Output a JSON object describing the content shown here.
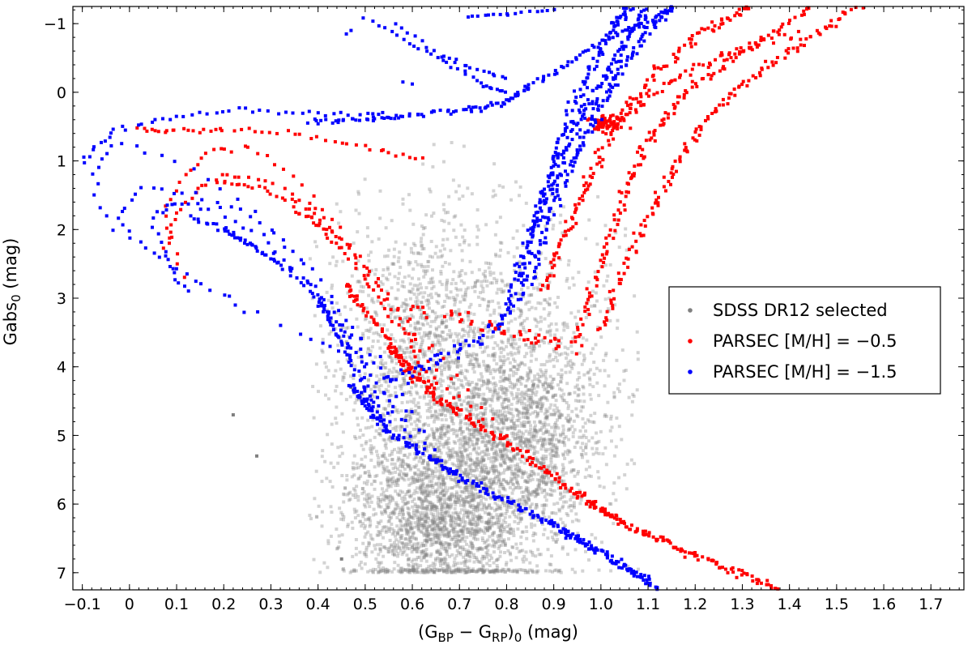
{
  "chart_data": {
    "type": "scatter",
    "title": "",
    "xlabel": {
      "prefix": "(G",
      "sub1": "BP",
      "mid": " − G",
      "sub2": "RP",
      "suffix": ")",
      "sub3": "0",
      "unit": " (mag)"
    },
    "ylabel": {
      "prefix": "Gabs",
      "sub": "0",
      "unit": " (mag)"
    },
    "xlim": [
      -0.12,
      1.77
    ],
    "ylim": [
      7.25,
      -1.25
    ],
    "y_inverted": true,
    "grid": false,
    "legend_position": "right",
    "x_ticks": [
      "−0.1",
      "0",
      "0.1",
      "0.2",
      "0.3",
      "0.4",
      "0.5",
      "0.6",
      "0.7",
      "0.8",
      "0.9",
      "1.0",
      "1.1",
      "1.2",
      "1.3",
      "1.4",
      "1.5",
      "1.6",
      "1.7"
    ],
    "x_tick_values": [
      -0.1,
      0,
      0.1,
      0.2,
      0.3,
      0.4,
      0.5,
      0.6,
      0.7,
      0.8,
      0.9,
      1.0,
      1.1,
      1.2,
      1.3,
      1.4,
      1.5,
      1.6,
      1.7
    ],
    "y_ticks": [
      "−1",
      "0",
      "1",
      "2",
      "3",
      "4",
      "5",
      "6",
      "7"
    ],
    "y_tick_values": [
      -1,
      0,
      1,
      2,
      3,
      4,
      5,
      6,
      7
    ],
    "series": [
      {
        "name": "SDSS DR12 selected",
        "color": "#808080",
        "density_cloud": [
          {
            "x": 0.66,
            "y": 6.3,
            "sx": 0.1,
            "sy": 0.55,
            "n": 1400
          },
          {
            "x": 0.7,
            "y": 5.4,
            "sx": 0.11,
            "sy": 0.7,
            "n": 1100
          },
          {
            "x": 0.85,
            "y": 4.9,
            "sx": 0.07,
            "sy": 0.75,
            "n": 900
          },
          {
            "x": 0.62,
            "y": 3.7,
            "sx": 0.1,
            "sy": 0.85,
            "n": 800
          },
          {
            "x": 0.78,
            "y": 3.2,
            "sx": 0.17,
            "sy": 1.1,
            "n": 500
          },
          {
            "x": 0.75,
            "y": 5.0,
            "sx": 0.19,
            "sy": 1.4,
            "n": 700
          }
        ],
        "outliers": [
          [
            0.22,
            4.7
          ],
          [
            0.27,
            5.3
          ],
          [
            0.47,
            4.3
          ],
          [
            0.45,
            6.8
          ]
        ]
      },
      {
        "name": "PARSEC [M/H] = −0.5",
        "color": "#ff0000",
        "main_sequence": [
          [
            0.55,
            3.7
          ],
          [
            0.65,
            4.45
          ],
          [
            0.8,
            5.1
          ],
          [
            0.95,
            5.85
          ],
          [
            1.05,
            6.3
          ],
          [
            1.2,
            6.75
          ],
          [
            1.38,
            7.25
          ]
        ],
        "turnoff_loops": [
          [
            [
              0.6,
              4.2
            ],
            [
              0.55,
              3.6
            ],
            [
              0.49,
              3.1
            ],
            [
              0.46,
              2.8
            ]
          ],
          [
            [
              0.65,
              4.4
            ],
            [
              0.6,
              3.7
            ],
            [
              0.52,
              2.9
            ],
            [
              0.45,
              2.3
            ],
            [
              0.4,
              1.9
            ],
            [
              0.35,
              1.7
            ]
          ],
          [
            [
              0.7,
              4.6
            ],
            [
              0.58,
              3.4
            ],
            [
              0.47,
              2.3
            ],
            [
              0.38,
              1.7
            ],
            [
              0.28,
              1.4
            ],
            [
              0.2,
              1.3
            ]
          ],
          [
            [
              0.75,
              4.8
            ],
            [
              0.62,
              3.6
            ],
            [
              0.5,
              2.5
            ],
            [
              0.4,
              1.7
            ],
            [
              0.3,
              1.3
            ],
            [
              0.2,
              1.2
            ],
            [
              0.15,
              1.4
            ],
            [
              0.1,
              1.8
            ],
            [
              0.08,
              2.3
            ]
          ],
          [
            [
              0.8,
              5.0
            ],
            [
              0.66,
              3.9
            ],
            [
              0.55,
              3.0
            ],
            [
              0.45,
              2.0
            ],
            [
              0.35,
              1.2
            ],
            [
              0.25,
              0.8
            ],
            [
              0.18,
              0.85
            ],
            [
              0.12,
              1.2
            ],
            [
              0.07,
              1.8
            ],
            [
              0.12,
              2.7
            ]
          ],
          [
            [
              0.62,
              1.0
            ],
            [
              0.5,
              0.8
            ],
            [
              0.35,
              0.6
            ],
            [
              0.2,
              0.55
            ],
            [
              0.1,
              0.55
            ],
            [
              0.02,
              0.55
            ]
          ]
        ],
        "subgiant_branch": [
          [
            0.6,
            3.1
          ],
          [
            0.75,
            3.4
          ],
          [
            0.85,
            3.6
          ],
          [
            0.95,
            3.7
          ]
        ],
        "rgb_bands": [
          [
            [
              0.95,
              3.6
            ],
            [
              1.0,
              2.5
            ],
            [
              1.05,
              1.5
            ],
            [
              1.1,
              0.7
            ],
            [
              1.18,
              0.0
            ],
            [
              1.3,
              -0.6
            ],
            [
              1.45,
              -1.25
            ]
          ],
          [
            [
              1.0,
              3.5
            ],
            [
              1.06,
              2.4
            ],
            [
              1.13,
              1.4
            ],
            [
              1.2,
              0.6
            ],
            [
              1.3,
              -0.1
            ],
            [
              1.42,
              -0.7
            ],
            [
              1.55,
              -1.25
            ]
          ],
          [
            [
              0.88,
              2.9
            ],
            [
              0.93,
              2.0
            ],
            [
              0.98,
              1.2
            ],
            [
              1.04,
              0.4
            ],
            [
              1.12,
              -0.3
            ],
            [
              1.22,
              -0.9
            ],
            [
              1.32,
              -1.25
            ]
          ]
        ],
        "red_clump": [
          1.01,
          0.45
        ],
        "clump_to_agb": [
          [
            1.03,
            0.45
          ],
          [
            1.1,
            0.1
          ],
          [
            1.2,
            -0.35
          ],
          [
            1.3,
            -0.6
          ],
          [
            1.4,
            -0.85
          ]
        ]
      },
      {
        "name": "PARSEC [M/H] = −1.5",
        "color": "#0000ff",
        "main_sequence": [
          [
            0.47,
            4.3
          ],
          [
            0.55,
            4.95
          ],
          [
            0.7,
            5.6
          ],
          [
            0.9,
            6.3
          ],
          [
            1.0,
            6.7
          ],
          [
            1.12,
            7.2
          ]
        ],
        "turnoff_loops": [
          [
            [
              0.52,
              4.6
            ],
            [
              0.47,
              3.9
            ],
            [
              0.43,
              3.4
            ],
            [
              0.4,
              3.0
            ]
          ],
          [
            [
              0.55,
              4.8
            ],
            [
              0.48,
              3.8
            ],
            [
              0.4,
              3.0
            ],
            [
              0.32,
              2.5
            ],
            [
              0.25,
              2.2
            ],
            [
              0.2,
              2.0
            ]
          ],
          [
            [
              0.58,
              4.9
            ],
            [
              0.48,
              3.7
            ],
            [
              0.38,
              2.8
            ],
            [
              0.28,
              2.3
            ],
            [
              0.2,
              2.0
            ],
            [
              0.13,
              1.8
            ]
          ],
          [
            [
              0.6,
              5.0
            ],
            [
              0.5,
              3.8
            ],
            [
              0.38,
              2.8
            ],
            [
              0.28,
              2.1
            ],
            [
              0.18,
              1.7
            ],
            [
              0.1,
              1.6
            ],
            [
              0.05,
              1.8
            ],
            [
              0.08,
              2.5
            ],
            [
              0.12,
              2.9
            ]
          ],
          [
            [
              0.63,
              5.1
            ],
            [
              0.52,
              3.9
            ],
            [
              0.4,
              2.7
            ],
            [
              0.28,
              1.9
            ],
            [
              0.15,
              1.5
            ],
            [
              0.02,
              1.4
            ],
            [
              -0.03,
              1.9
            ],
            [
              0.1,
              2.6
            ],
            [
              0.25,
              3.2
            ]
          ],
          [
            [
              0.65,
              5.2
            ],
            [
              0.54,
              4.0
            ],
            [
              0.4,
              2.8
            ],
            [
              0.25,
              1.6
            ],
            [
              0.1,
              1.0
            ],
            [
              -0.03,
              0.7
            ],
            [
              -0.08,
              1.2
            ],
            [
              -0.05,
              1.9
            ],
            [
              0.1,
              2.6
            ],
            [
              0.35,
              3.5
            ],
            [
              0.45,
              3.8
            ]
          ],
          [
            [
              0.55,
              0.35
            ],
            [
              0.4,
              0.3
            ],
            [
              0.25,
              0.25
            ],
            [
              0.1,
              0.35
            ],
            [
              -0.03,
              0.55
            ],
            [
              -0.1,
              1.0
            ]
          ]
        ],
        "subgiant_branch": [
          [
            0.55,
            4.2
          ],
          [
            0.65,
            3.9
          ],
          [
            0.75,
            3.6
          ],
          [
            0.82,
            3.1
          ]
        ],
        "rgb_bands": [
          [
            [
              0.82,
              3.0
            ],
            [
              0.86,
              2.0
            ],
            [
              0.9,
              1.2
            ],
            [
              0.95,
              0.5
            ],
            [
              1.0,
              -0.1
            ],
            [
              1.05,
              -0.7
            ],
            [
              1.1,
              -1.25
            ]
          ],
          [
            [
              0.85,
              2.8
            ],
            [
              0.89,
              1.8
            ],
            [
              0.94,
              1.0
            ],
            [
              0.99,
              0.3
            ],
            [
              1.04,
              -0.3
            ],
            [
              1.1,
              -0.9
            ],
            [
              1.15,
              -1.25
            ]
          ],
          [
            [
              0.8,
              3.2
            ],
            [
              0.84,
              2.3
            ],
            [
              0.88,
              1.4
            ],
            [
              0.92,
              0.6
            ],
            [
              0.97,
              -0.2
            ],
            [
              1.02,
              -0.9
            ],
            [
              1.06,
              -1.25
            ]
          ]
        ],
        "horizontal_branch": [
          [
            0.38,
            0.42
          ],
          [
            0.5,
            0.4
          ],
          [
            0.6,
            0.33
          ],
          [
            0.72,
            0.25
          ],
          [
            0.8,
            0.15
          ],
          [
            0.85,
            -0.1
          ],
          [
            0.95,
            -0.5
          ],
          [
            1.05,
            -0.9
          ],
          [
            1.15,
            -1.2
          ]
        ],
        "agb_arc": [
          [
            0.5,
            -1.1
          ],
          [
            0.6,
            -0.7
          ],
          [
            0.68,
            -0.4
          ],
          [
            0.75,
            -0.1
          ],
          [
            0.8,
            0.0
          ]
        ],
        "agb_arc2": [
          [
            0.56,
            -1.0
          ],
          [
            0.66,
            -0.55
          ],
          [
            0.73,
            -0.35
          ],
          [
            0.8,
            -0.2
          ]
        ],
        "agb_top": [
          [
            0.72,
            -1.1
          ],
          [
            0.8,
            -1.15
          ],
          [
            0.9,
            -1.2
          ]
        ],
        "extra_points": [
          [
            0.46,
            -0.85
          ],
          [
            0.47,
            -0.9
          ],
          [
            0.58,
            -0.15
          ],
          [
            0.6,
            -0.12
          ]
        ]
      }
    ]
  }
}
